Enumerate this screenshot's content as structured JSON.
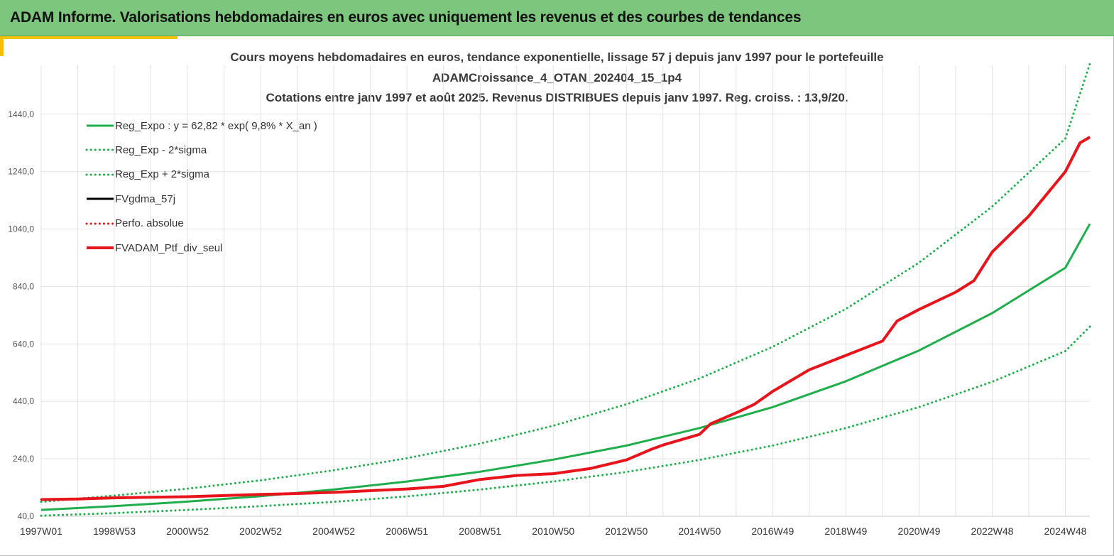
{
  "banner": {
    "title": "ADAM Informe. Valorisations hebdomadaires en euros avec uniquement les revenus et des courbes de tendances"
  },
  "colors": {
    "banner": "#7dc67d",
    "accent": "#f2c200",
    "trend_green": "#1fae4b",
    "fv_black": "#000000",
    "ptf_red": "#e8141b"
  },
  "chart_data": {
    "type": "line",
    "title_lines": [
      "Cours moyens hebdomadaires  en euros, tendance exponentielle, lissage 57 j depuis janv 1997 pour le portefeuille",
      "ADAMCroissance_4_OTAN_202404_15_1p4",
      "Cotations  entre janv 1997 et août  2025. Revenus DISTRIBUES depuis janv 1997. Reg. croiss. : 13,9/20."
    ],
    "xlabel": "",
    "ylabel": "",
    "x_tick_labels": [
      "1997W01",
      "1998W53",
      "2000W52",
      "2002W52",
      "2004W52",
      "2006W51",
      "2008W51",
      "2010W50",
      "2012W50",
      "2014W50",
      "2016W49",
      "2018W49",
      "2020W49",
      "2022W48",
      "2024W48"
    ],
    "x_tick_years": [
      1997.0,
      1999.0,
      2001.0,
      2003.0,
      2005.0,
      2007.0,
      2009.0,
      2011.0,
      2013.0,
      2015.0,
      2017.0,
      2019.0,
      2021.0,
      2023.0,
      2025.0
    ],
    "x_range": [
      1997.0,
      2025.67
    ],
    "y_tick_labels": [
      "40,0",
      "240,0",
      "440,0",
      "640,0",
      "840,0",
      "1040,0",
      "1240,0",
      "1440,0"
    ],
    "y_ticks": [
      40,
      240,
      440,
      640,
      840,
      1040,
      1240,
      1440
    ],
    "ylim": [
      40,
      1610
    ],
    "grid": true,
    "legend_position": "top-left",
    "series": [
      {
        "name": "Reg_Expo : y = 62,82 * exp( 9,8% *  X_an )",
        "color": "#1fae4b",
        "style": "solid",
        "width": 3,
        "x": [
          1997,
          1999,
          2001,
          2003,
          2005,
          2007,
          2009,
          2011,
          2013,
          2015,
          2017,
          2019,
          2021,
          2023,
          2025,
          2025.67
        ],
        "values": [
          62,
          75,
          91,
          110,
          133,
          161,
          195,
          237,
          286,
          347,
          420,
          510,
          617,
          747,
          905,
          1058
        ]
      },
      {
        "name": "Reg_Exp - 2*sigma",
        "color": "#1fae4b",
        "style": "dotted",
        "width": 3,
        "x": [
          1997,
          1999,
          2001,
          2003,
          2005,
          2007,
          2009,
          2011,
          2013,
          2015,
          2017,
          2019,
          2021,
          2023,
          2025,
          2025.67
        ],
        "values": [
          42,
          51,
          62,
          75,
          90,
          109,
          133,
          161,
          194,
          236,
          286,
          347,
          420,
          508,
          615,
          700
        ]
      },
      {
        "name": "Reg_Exp + 2*sigma",
        "color": "#1fae4b",
        "style": "dotted",
        "width": 3,
        "x": [
          1997,
          1999,
          2001,
          2003,
          2005,
          2007,
          2009,
          2011,
          2013,
          2015,
          2017,
          2019,
          2021,
          2023,
          2025,
          2025.67
        ],
        "values": [
          90,
          112,
          136,
          165,
          200,
          242,
          293,
          355,
          430,
          520,
          630,
          762,
          923,
          1118,
          1355,
          1615
        ]
      },
      {
        "name": "FVgdma_57j",
        "color": "#000000",
        "style": "solid",
        "width": 3,
        "x": [
          1997,
          1998,
          1999,
          2000,
          2001,
          2002,
          2003,
          2004,
          2005,
          2006,
          2007,
          2008,
          2009,
          2010,
          2011,
          2012,
          2013,
          2013.7,
          2014,
          2015,
          2015.3,
          2016,
          2016.5,
          2017,
          2018,
          2019,
          2020,
          2020.4,
          2021,
          2022,
          2022.5,
          2023,
          2024,
          2025,
          2025.4,
          2025.67
        ],
        "values": [
          98,
          100,
          104,
          106,
          108,
          112,
          116,
          119,
          123,
          129,
          135,
          144,
          168,
          182,
          188,
          206,
          236,
          274,
          288,
          325,
          362,
          400,
          430,
          475,
          550,
          600,
          650,
          720,
          760,
          820,
          860,
          960,
          1085,
          1240,
          1340,
          1360
        ]
      },
      {
        "name": "Perfo. absolue",
        "color": "#e8141b",
        "style": "dotted",
        "width": 3,
        "x": [
          1997,
          1998,
          1999,
          2000,
          2001,
          2002,
          2003,
          2004,
          2005,
          2006,
          2007,
          2008,
          2009,
          2010,
          2011,
          2012,
          2013,
          2013.7,
          2014,
          2015,
          2015.3,
          2016,
          2016.5,
          2017,
          2018,
          2019,
          2020,
          2020.4,
          2021,
          2022,
          2022.5,
          2023,
          2024,
          2025,
          2025.4,
          2025.67
        ],
        "values": [
          98,
          100,
          104,
          106,
          108,
          112,
          116,
          119,
          123,
          129,
          135,
          144,
          168,
          182,
          188,
          206,
          236,
          274,
          288,
          325,
          362,
          400,
          430,
          475,
          550,
          600,
          650,
          720,
          760,
          820,
          860,
          960,
          1085,
          1240,
          1340,
          1360
        ]
      },
      {
        "name": "FVADAM_Ptf_div_seul",
        "color": "#e8141b",
        "style": "solid",
        "width": 4,
        "x": [
          1997,
          1998,
          1999,
          2000,
          2001,
          2002,
          2003,
          2004,
          2005,
          2006,
          2007,
          2008,
          2009,
          2010,
          2011,
          2012,
          2013,
          2013.7,
          2014,
          2015,
          2015.3,
          2016,
          2016.5,
          2017,
          2018,
          2019,
          2020,
          2020.4,
          2021,
          2022,
          2022.5,
          2023,
          2024,
          2025,
          2025.4,
          2025.67
        ],
        "values": [
          98,
          100,
          104,
          106,
          108,
          112,
          116,
          119,
          123,
          129,
          135,
          144,
          168,
          182,
          188,
          206,
          236,
          274,
          288,
          325,
          362,
          400,
          430,
          475,
          550,
          600,
          650,
          720,
          760,
          820,
          860,
          960,
          1085,
          1240,
          1340,
          1360
        ]
      }
    ]
  }
}
